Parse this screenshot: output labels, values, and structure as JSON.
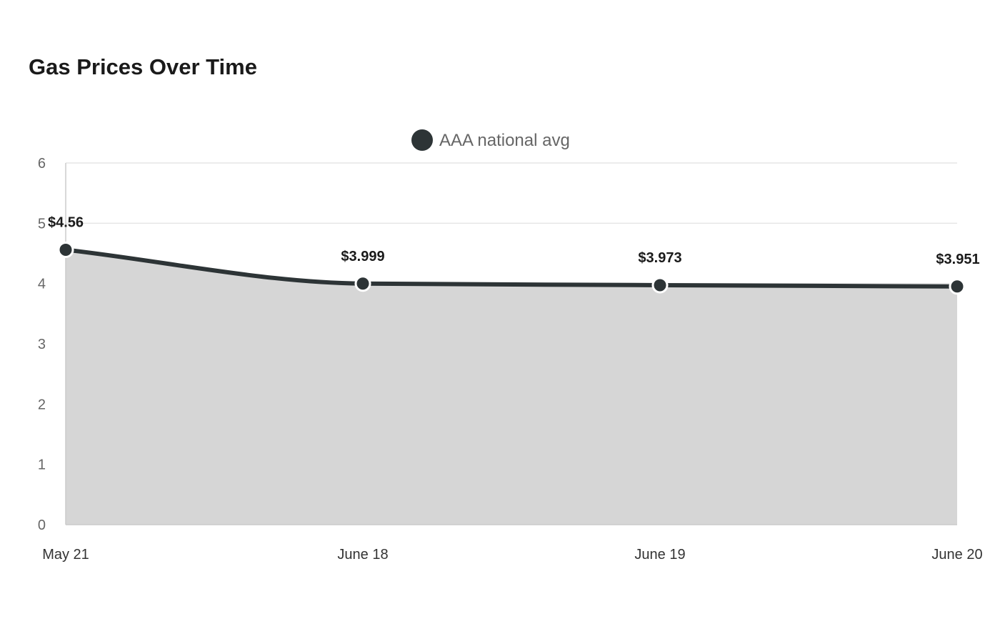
{
  "chart_data": {
    "type": "area",
    "title": "Gas Prices Over Time",
    "categories": [
      "May 21",
      "June 18",
      "June 19",
      "June 20"
    ],
    "series": [
      {
        "name": "AAA national avg",
        "values": [
          4.56,
          3.999,
          3.973,
          3.951
        ],
        "labels": [
          "$4.56",
          "$3.999",
          "$3.973",
          "$3.951"
        ]
      }
    ],
    "ylim": [
      0,
      6
    ],
    "yticks": [
      0,
      1,
      2,
      3,
      4,
      5,
      6
    ],
    "grid": true,
    "legend": "top-center",
    "colors": {
      "line": "#2d3436",
      "fill": "#d6d6d6",
      "grid": "#e6e6e6",
      "axis": "#cccccc"
    }
  }
}
